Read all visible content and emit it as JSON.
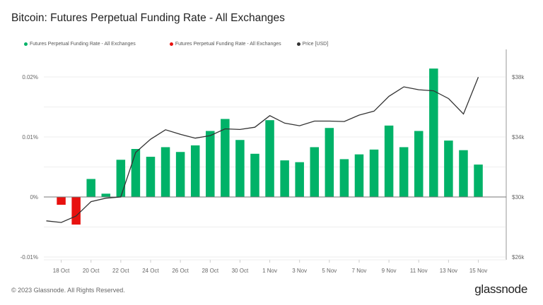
{
  "title": "Bitcoin: Futures Perpetual Funding Rate - All Exchanges",
  "footer": "© 2023 Glassnode. All Rights Reserved.",
  "logo": "glassnode",
  "legend": [
    {
      "label": "Futures Perpetual Funding Rate - All Exchanges",
      "color": "#00b268"
    },
    {
      "label": "Futures Perpetual Funding Rate - All Exchanges",
      "color": "#e8110f"
    },
    {
      "label": "Price [USD]",
      "color": "#333333"
    }
  ],
  "chart_data": {
    "type": "bar",
    "title": "Bitcoin: Futures Perpetual Funding Rate - All Exchanges",
    "grid": true,
    "legend_placement": "top-left",
    "x_ticks": [
      "18 Oct",
      "20 Oct",
      "22 Oct",
      "24 Oct",
      "26 Oct",
      "28 Oct",
      "30 Oct",
      "1 Nov",
      "3 Nov",
      "5 Nov",
      "7 Nov",
      "9 Nov",
      "11 Nov",
      "13 Nov",
      "15 Nov"
    ],
    "y_left": {
      "ticks": [
        "-0.01%",
        "0%",
        "0.01%",
        "0.02%"
      ],
      "tick_values": [
        -0.01,
        0,
        0.01,
        0.02
      ],
      "range": [
        -0.01,
        0.0235
      ]
    },
    "y_right": {
      "ticks": [
        "$26k",
        "$30k",
        "$34k",
        "$38k"
      ],
      "tick_values": [
        26000,
        30000,
        34000,
        38000
      ],
      "range": [
        26000,
        40500
      ]
    },
    "positive_color": "#00b268",
    "negative_color": "#e8110f",
    "price_color": "#333333",
    "funding_rate": {
      "dates": [
        "18 Oct",
        "19 Oct",
        "20 Oct",
        "21 Oct",
        "22 Oct",
        "23 Oct",
        "24 Oct",
        "25 Oct",
        "26 Oct",
        "27 Oct",
        "28 Oct",
        "29 Oct",
        "30 Oct",
        "31 Oct",
        "1 Nov",
        "2 Nov",
        "3 Nov",
        "4 Nov",
        "5 Nov",
        "6 Nov",
        "7 Nov",
        "8 Nov",
        "9 Nov",
        "10 Nov",
        "11 Nov",
        "12 Nov",
        "13 Nov",
        "14 Nov",
        "15 Nov"
      ],
      "values": [
        -0.0013,
        -0.0046,
        0.003,
        0.00055,
        0.0062,
        0.008,
        0.0067,
        0.0083,
        0.0075,
        0.0086,
        0.011,
        0.013,
        0.0095,
        0.0072,
        0.0128,
        0.0061,
        0.0058,
        0.0083,
        0.0115,
        0.0063,
        0.0071,
        0.0079,
        0.0119,
        0.0083,
        0.011,
        0.0214,
        0.0094,
        0.0078,
        0.0054
      ]
    },
    "price": {
      "dates": [
        "17 Oct",
        "18 Oct",
        "19 Oct",
        "20 Oct",
        "21 Oct",
        "22 Oct",
        "23 Oct",
        "24 Oct",
        "25 Oct",
        "26 Oct",
        "27 Oct",
        "28 Oct",
        "29 Oct",
        "30 Oct",
        "31 Oct",
        "1 Nov",
        "2 Nov",
        "3 Nov",
        "4 Nov",
        "5 Nov",
        "6 Nov",
        "7 Nov",
        "8 Nov",
        "9 Nov",
        "10 Nov",
        "11 Nov",
        "12 Nov",
        "13 Nov",
        "14 Nov",
        "15 Nov"
      ],
      "values": [
        28410,
        28300,
        28730,
        29690,
        29920,
        30000,
        32970,
        33850,
        34480,
        34180,
        33920,
        34090,
        34540,
        34500,
        34650,
        35420,
        34920,
        34750,
        35060,
        35060,
        35030,
        35460,
        35720,
        36710,
        37340,
        37150,
        37080,
        36560,
        35530,
        37990
      ]
    }
  }
}
